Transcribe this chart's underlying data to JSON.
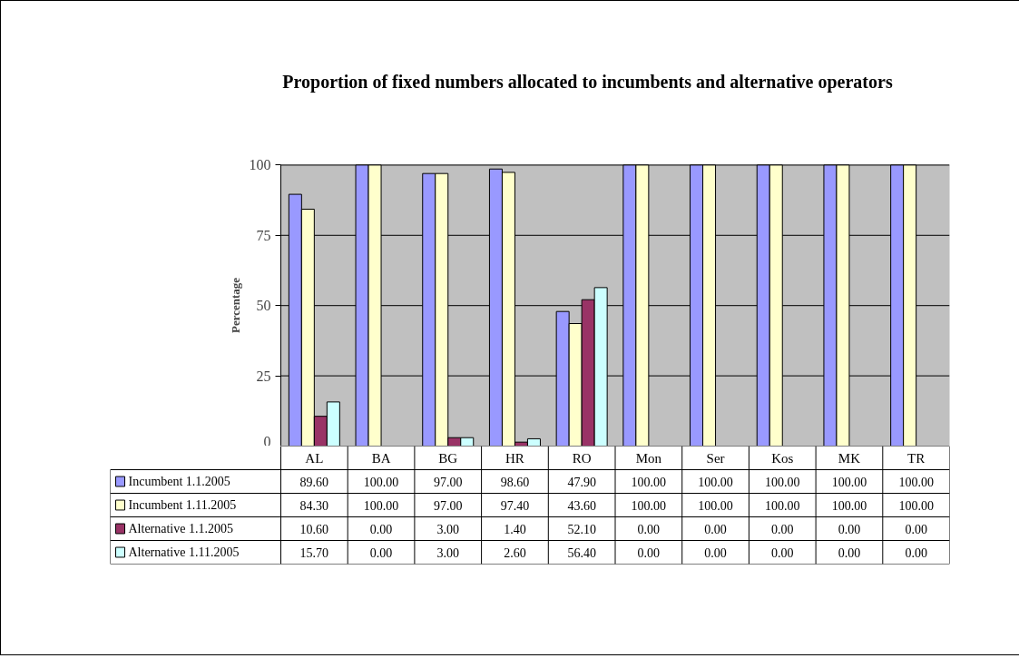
{
  "chart_data": {
    "type": "bar",
    "title": "Proportion of fixed numbers allocated to incumbents and alternative operators",
    "ylabel": "Percentage",
    "categories": [
      "AL",
      "BA",
      "BG",
      "HR",
      "RO",
      "Mon",
      "Ser",
      "Kos",
      "MK",
      "TR"
    ],
    "ylim": [
      0,
      100
    ],
    "yticks": [
      0,
      25,
      50,
      75,
      100
    ],
    "grid": "y",
    "legend": "bottom",
    "series": [
      {
        "name": "Incumbent 1.1.2005",
        "color": "#9999ff",
        "values": [
          89.6,
          100,
          97,
          98.6,
          47.9,
          100,
          100,
          100,
          100,
          100
        ],
        "value_labels": [
          "89.60",
          "100.00",
          "97.00",
          "98.60",
          "47.90",
          "100.00",
          "100.00",
          "100.00",
          "100.00",
          "100.00"
        ]
      },
      {
        "name": "Incumbent 1.11.2005",
        "color": "#ffffcc",
        "values": [
          84.3,
          100,
          97,
          97.4,
          43.6,
          100,
          100,
          100,
          100,
          100
        ],
        "value_labels": [
          "84.30",
          "100.00",
          "97.00",
          "97.40",
          "43.60",
          "100.00",
          "100.00",
          "100.00",
          "100.00",
          "100.00"
        ]
      },
      {
        "name": "Alternative 1.1.2005",
        "color": "#993366",
        "values": [
          10.6,
          0,
          3,
          1.4,
          52.1,
          0,
          0,
          0,
          0,
          0
        ],
        "value_labels": [
          "10.60",
          "0.00",
          "3.00",
          "1.40",
          "52.10",
          "0.00",
          "0.00",
          "0.00",
          "0.00",
          "0.00"
        ]
      },
      {
        "name": "Alternative 1.11.2005",
        "color": "#ccffff",
        "values": [
          15.7,
          0,
          3,
          2.6,
          56.4,
          0,
          0,
          0,
          0,
          0
        ],
        "value_labels": [
          "15.70",
          "0.00",
          "3.00",
          "2.60",
          "56.40",
          "0.00",
          "0.00",
          "0.00",
          "0.00",
          "0.00"
        ]
      }
    ]
  }
}
